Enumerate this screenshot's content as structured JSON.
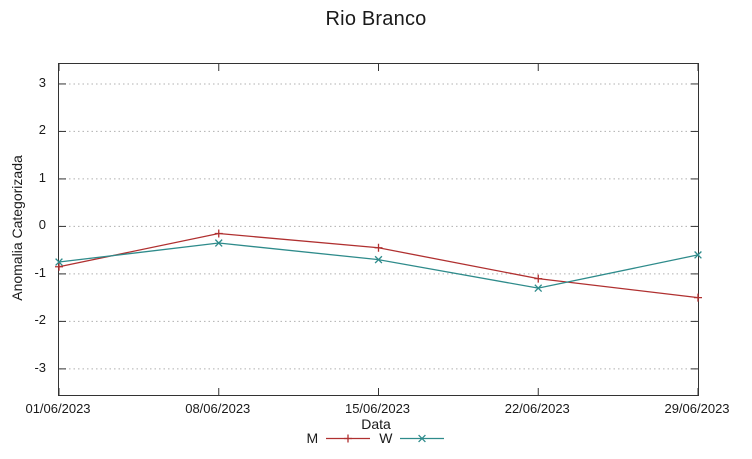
{
  "chart_data": {
    "type": "line",
    "title": "Rio Branco",
    "xlabel": "Data",
    "ylabel": "Anomalia Categorizada",
    "categories": [
      "01/06/2023",
      "08/06/2023",
      "15/06/2023",
      "22/06/2023",
      "29/06/2023"
    ],
    "yticks": [
      3,
      2,
      1,
      0,
      -1,
      -2,
      -3
    ],
    "ylim": [
      -3.55,
      3.42
    ],
    "grid": {
      "horizontal": true,
      "vertical": false,
      "style": "dotted",
      "color": "#b0b0b0"
    },
    "legend_position": "bottom-center",
    "border_color": "#333333",
    "background": "#ffffff",
    "series": [
      {
        "name": "M",
        "marker": "plus",
        "color": "#b03030",
        "values": [
          -0.85,
          -0.15,
          -0.45,
          -1.1,
          -1.5
        ]
      },
      {
        "name": "W",
        "marker": "cross",
        "color": "#2e8b8b",
        "values": [
          -0.75,
          -0.35,
          -0.7,
          -1.3,
          -0.6
        ]
      }
    ]
  }
}
